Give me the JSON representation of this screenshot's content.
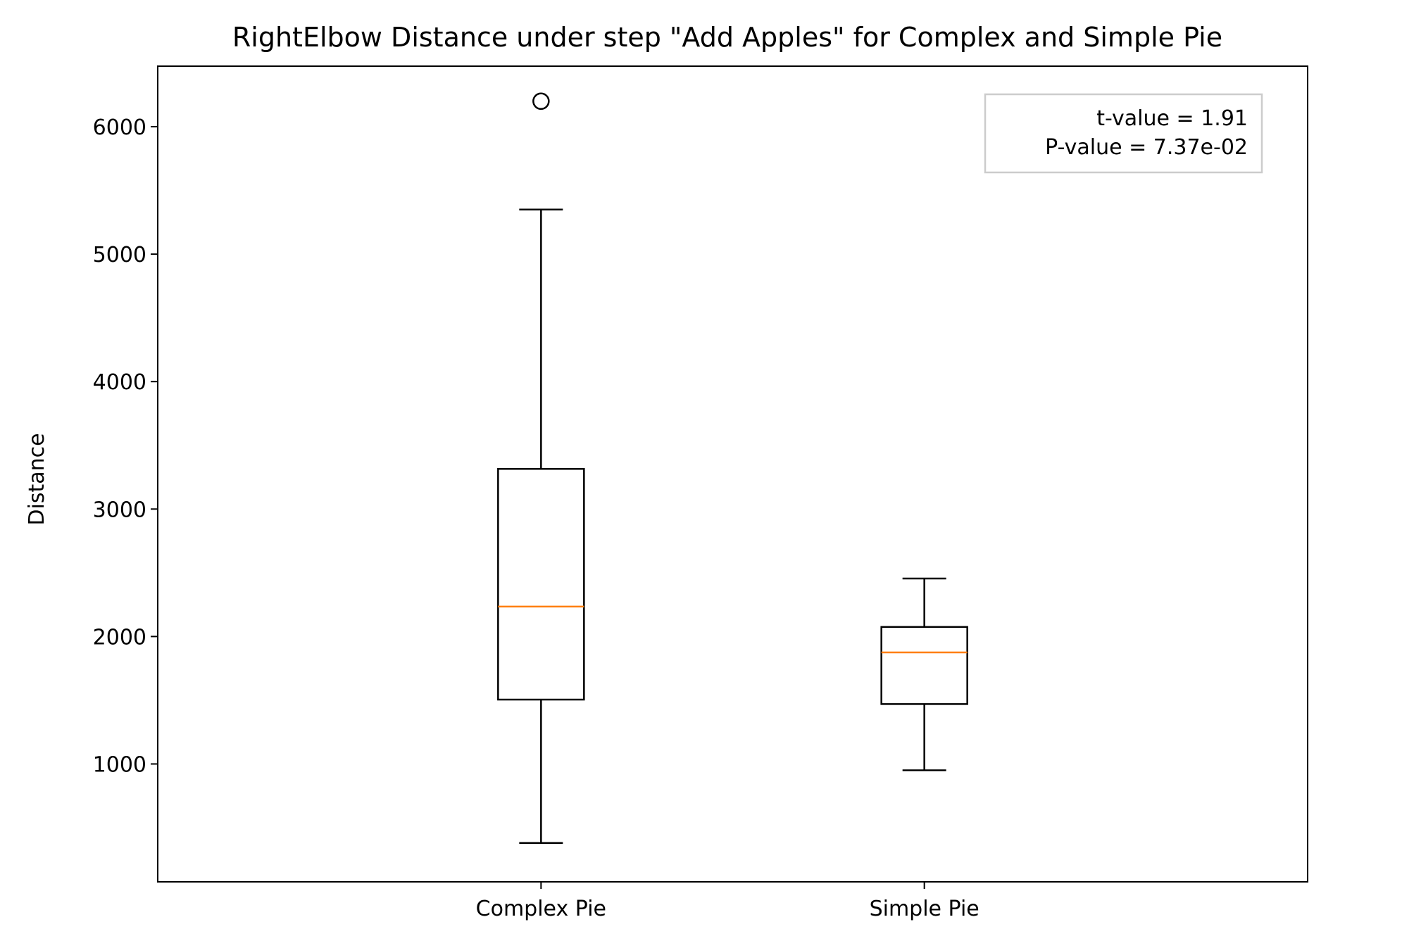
{
  "chart_data": {
    "type": "boxplot",
    "title": "RightElbow Distance under step \"Add Apples\" for Complex and Simple Pie",
    "xlabel": "",
    "ylabel": "Distance",
    "categories": [
      "Complex Pie",
      "Simple Pie"
    ],
    "boxes": [
      {
        "label": "Complex Pie",
        "whisker_low": 380,
        "q1": 1505,
        "median": 2235,
        "q3": 3315,
        "whisker_high": 5350,
        "outliers": [
          6200
        ]
      },
      {
        "label": "Simple Pie",
        "whisker_low": 950,
        "q1": 1470,
        "median": 1875,
        "q3": 2075,
        "whisker_high": 2455,
        "outliers": []
      }
    ],
    "ylim": [
      75,
      6475
    ],
    "yticks": [
      1000,
      2000,
      3000,
      4000,
      5000,
      6000
    ],
    "ytick_labels": [
      "1000",
      "2000",
      "3000",
      "4000",
      "5000",
      "6000"
    ],
    "grid": false,
    "annotation": {
      "lines": [
        "t-value = 1.91",
        "P-value = 7.37e-02"
      ],
      "placement": "top-right"
    },
    "colors": {
      "box": "#000000",
      "median": "#ff7f0e",
      "annotation_border": "#cccccc"
    }
  }
}
